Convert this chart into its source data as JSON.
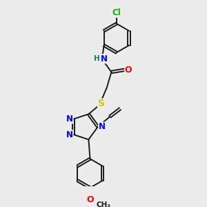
{
  "bg_color": "#ececec",
  "bond_color": "#1a1a1a",
  "atom_colors": {
    "N": "#0000ff",
    "O": "#ff0000",
    "S": "#cccc00",
    "Cl": "#00bb00",
    "H": "#008080",
    "C": "#1a1a1a"
  },
  "font_size": 8.5
}
